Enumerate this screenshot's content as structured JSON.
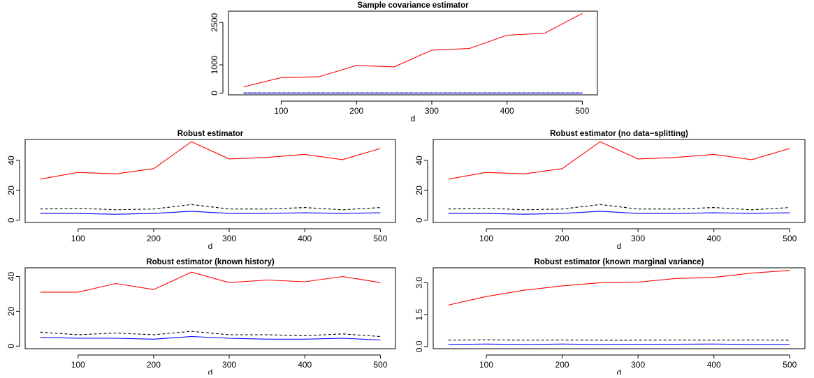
{
  "chart_data": [
    {
      "type": "line",
      "title": "Sample covariance estimator",
      "xlabel": "d",
      "ylabel": "",
      "x": [
        50,
        100,
        150,
        200,
        250,
        300,
        350,
        400,
        450,
        500
      ],
      "xlim": [
        30,
        520
      ],
      "ylim": [
        -60,
        2900
      ],
      "xticks": [
        100,
        200,
        300,
        400,
        500
      ],
      "yticks": [
        0,
        1000,
        2500
      ],
      "yticklabels": [
        "0",
        "1000",
        "2500"
      ],
      "series": [
        {
          "style": "solid",
          "color": "#ff0000",
          "values": [
            220,
            550,
            580,
            980,
            930,
            1520,
            1580,
            2050,
            2120,
            2820
          ]
        },
        {
          "style": "dashed",
          "color": "#000000",
          "values": [
            8,
            9,
            8,
            9,
            10,
            9,
            9,
            10,
            9,
            10
          ]
        },
        {
          "style": "solid",
          "color": "#0000ff",
          "values": [
            4,
            4,
            4,
            4,
            5,
            4,
            4,
            4,
            4,
            4
          ]
        }
      ]
    },
    {
      "type": "line",
      "title": "Robust estimator",
      "xlabel": "d",
      "ylabel": "",
      "x": [
        50,
        100,
        150,
        200,
        250,
        300,
        350,
        400,
        450,
        500
      ],
      "xlim": [
        30,
        520
      ],
      "ylim": [
        -1.5,
        54
      ],
      "xticks": [
        100,
        200,
        300,
        400,
        500
      ],
      "yticks": [
        0,
        20,
        40
      ],
      "yticklabels": [
        "0",
        "20",
        "40"
      ],
      "series": [
        {
          "style": "solid",
          "color": "#ff0000",
          "values": [
            27.5,
            32,
            31,
            34.5,
            52.5,
            41,
            42,
            44,
            40.5,
            48
          ]
        },
        {
          "style": "dashed",
          "color": "#000000",
          "values": [
            7.5,
            8,
            7,
            7.5,
            10.5,
            7.5,
            7.5,
            8.5,
            7,
            8.5
          ]
        },
        {
          "style": "solid",
          "color": "#0000ff",
          "values": [
            4.5,
            4.5,
            4,
            4.5,
            6,
            4.5,
            4.5,
            5,
            4.5,
            5
          ]
        }
      ]
    },
    {
      "type": "line",
      "title": "Robust estimator (no data−splitting)",
      "xlabel": "d",
      "ylabel": "",
      "x": [
        50,
        100,
        150,
        200,
        250,
        300,
        350,
        400,
        450,
        500
      ],
      "xlim": [
        30,
        520
      ],
      "ylim": [
        -1.5,
        54
      ],
      "xticks": [
        100,
        200,
        300,
        400,
        500
      ],
      "yticks": [
        0,
        20,
        40
      ],
      "yticklabels": [
        "0",
        "20",
        "40"
      ],
      "series": [
        {
          "style": "solid",
          "color": "#ff0000",
          "values": [
            27.5,
            32,
            31,
            34.5,
            52.5,
            41,
            42,
            44,
            40.5,
            48
          ]
        },
        {
          "style": "dashed",
          "color": "#000000",
          "values": [
            7.5,
            8,
            7,
            7.5,
            10.5,
            7.5,
            7.5,
            8.5,
            7,
            8.5
          ]
        },
        {
          "style": "solid",
          "color": "#0000ff",
          "values": [
            4.5,
            4.5,
            4,
            4.5,
            6,
            4.5,
            4.5,
            5,
            4.5,
            5
          ]
        }
      ]
    },
    {
      "type": "line",
      "title": "Robust estimator (known history)",
      "xlabel": "d",
      "ylabel": "",
      "x": [
        50,
        100,
        150,
        200,
        250,
        300,
        350,
        400,
        450,
        500
      ],
      "xlim": [
        30,
        520
      ],
      "ylim": [
        -1.5,
        45
      ],
      "xticks": [
        100,
        200,
        300,
        400,
        500
      ],
      "yticks": [
        0,
        20,
        40
      ],
      "yticklabels": [
        "0",
        "20",
        "40"
      ],
      "series": [
        {
          "style": "solid",
          "color": "#ff0000",
          "values": [
            31,
            31,
            36,
            32.5,
            42.5,
            36.5,
            38,
            37,
            40,
            36.5
          ]
        },
        {
          "style": "dashed",
          "color": "#000000",
          "values": [
            8,
            6.5,
            7.5,
            6.5,
            8.5,
            6.5,
            6.5,
            6,
            7,
            5.5
          ]
        },
        {
          "style": "solid",
          "color": "#0000ff",
          "values": [
            5,
            4.5,
            4.5,
            4,
            5.5,
            4.5,
            4,
            4,
            4.5,
            3.5
          ]
        }
      ]
    },
    {
      "type": "line",
      "title": "Robust estimator (known marginal variance)",
      "xlabel": "d",
      "ylabel": "",
      "x": [
        50,
        100,
        150,
        200,
        250,
        300,
        350,
        400,
        450,
        500
      ],
      "xlim": [
        30,
        520
      ],
      "ylim": [
        -0.1,
        3.7
      ],
      "xticks": [
        100,
        200,
        300,
        400,
        500
      ],
      "yticks": [
        0,
        1.5,
        3
      ],
      "yticklabels": [
        "0.0",
        "1.5",
        "3.0"
      ],
      "series": [
        {
          "style": "solid",
          "color": "#ff0000",
          "values": [
            1.95,
            2.35,
            2.65,
            2.85,
            3.0,
            3.03,
            3.2,
            3.25,
            3.45,
            3.58
          ]
        },
        {
          "style": "dashed",
          "color": "#000000",
          "values": [
            0.3,
            0.32,
            0.3,
            0.31,
            0.3,
            0.3,
            0.31,
            0.3,
            0.31,
            0.3
          ]
        },
        {
          "style": "solid",
          "color": "#0000ff",
          "values": [
            0.1,
            0.12,
            0.1,
            0.12,
            0.1,
            0.11,
            0.11,
            0.12,
            0.1,
            0.1
          ]
        }
      ]
    }
  ]
}
